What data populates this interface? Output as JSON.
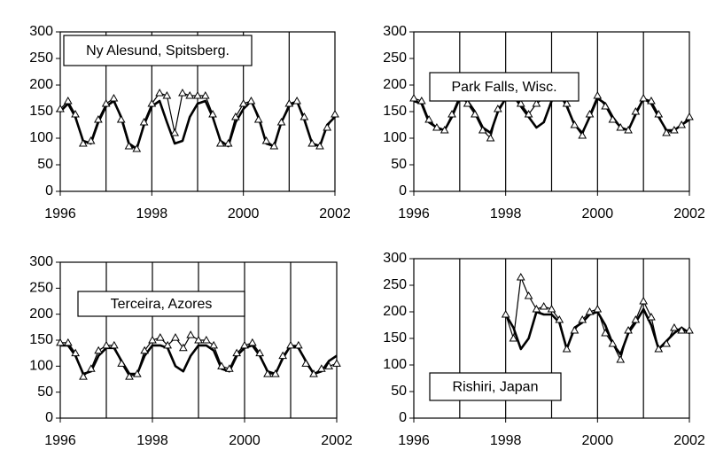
{
  "chart_data": [
    {
      "type": "line",
      "annotation": "Ny Alesund, Spitsberg.",
      "x": [
        1996,
        1996.17,
        1996.33,
        1996.5,
        1996.67,
        1996.83,
        1997,
        1997.17,
        1997.33,
        1997.5,
        1997.67,
        1997.83,
        1998,
        1998.17,
        1998.33,
        1998.5,
        1998.67,
        1998.83,
        1999,
        1999.17,
        1999.33,
        1999.5,
        1999.67,
        1999.83,
        2000,
        2000.17,
        2000.33,
        2000.5,
        2000.67,
        2000.83,
        2001,
        2001.17,
        2001.33,
        2001.5,
        2001.67,
        2001.83,
        2002
      ],
      "series": [
        {
          "color": "#000000",
          "values": [
            150,
            165,
            140,
            95,
            90,
            130,
            160,
            170,
            140,
            90,
            80,
            125,
            160,
            170,
            130,
            90,
            95,
            140,
            165,
            170,
            140,
            95,
            85,
            130,
            155,
            170,
            140,
            90,
            85,
            130,
            160,
            170,
            135,
            90,
            85,
            125,
            140
          ]
        },
        {
          "color": "#000000",
          "marker": "triangle",
          "values": [
            155,
            170,
            145,
            90,
            95,
            135,
            165,
            175,
            135,
            85,
            80,
            130,
            165,
            185,
            180,
            110,
            185,
            180,
            180,
            180,
            145,
            90,
            90,
            140,
            165,
            170,
            135,
            95,
            85,
            130,
            165,
            170,
            140,
            90,
            85,
            120,
            145
          ]
        }
      ],
      "xlim": [
        1996,
        2002
      ],
      "xticks": [
        1996,
        1998,
        2000,
        2002
      ],
      "x_gridlines": [
        1997,
        1998,
        1999,
        2000,
        2001
      ],
      "ylim": [
        0,
        300
      ],
      "yticks": [
        0,
        50,
        100,
        150,
        200,
        250,
        300
      ]
    },
    {
      "type": "line",
      "annotation": "Park Falls, Wisc.",
      "x": [
        1996,
        1996.17,
        1996.33,
        1996.5,
        1996.67,
        1996.83,
        1997,
        1997.17,
        1997.33,
        1997.5,
        1997.67,
        1997.83,
        1998,
        1998.17,
        1998.33,
        1998.5,
        1998.67,
        1998.83,
        1999,
        1999.17,
        1999.33,
        1999.5,
        1999.67,
        1999.83,
        2000,
        2000.17,
        2000.33,
        2000.5,
        2000.67,
        2000.83,
        2001,
        2001.17,
        2001.33,
        2001.5,
        2001.67,
        2001.83,
        2002
      ],
      "series": [
        {
          "color": "#000000",
          "values": [
            170,
            165,
            130,
            120,
            115,
            140,
            175,
            170,
            150,
            120,
            110,
            150,
            175,
            180,
            160,
            140,
            120,
            130,
            170,
            185,
            160,
            125,
            110,
            140,
            175,
            165,
            140,
            120,
            115,
            145,
            175,
            165,
            140,
            115,
            115,
            125,
            135
          ]
        },
        {
          "color": "#000000",
          "marker": "triangle",
          "values": [
            175,
            170,
            135,
            120,
            115,
            145,
            180,
            165,
            145,
            115,
            100,
            155,
            175,
            185,
            165,
            145,
            165,
            175,
            185,
            190,
            165,
            125,
            105,
            145,
            180,
            160,
            135,
            120,
            115,
            150,
            175,
            170,
            145,
            110,
            115,
            125,
            140
          ]
        }
      ],
      "xlim": [
        1996,
        2002
      ],
      "xticks": [
        1996,
        1998,
        2000,
        2002
      ],
      "x_gridlines": [
        1997,
        1998,
        1999,
        2000,
        2001
      ],
      "ylim": [
        0,
        300
      ],
      "yticks": [
        0,
        50,
        100,
        150,
        200,
        250,
        300
      ]
    },
    {
      "type": "line",
      "annotation": "Terceira, Azores",
      "x": [
        1996,
        1996.17,
        1996.33,
        1996.5,
        1996.67,
        1996.83,
        1997,
        1997.17,
        1997.33,
        1997.5,
        1997.67,
        1997.83,
        1998,
        1998.17,
        1998.33,
        1998.5,
        1998.67,
        1998.83,
        1999,
        1999.17,
        1999.33,
        1999.5,
        1999.67,
        1999.83,
        2000,
        2000.17,
        2000.33,
        2000.5,
        2000.67,
        2000.83,
        2001,
        2001.17,
        2001.33,
        2001.5,
        2001.67,
        2001.83,
        2002
      ],
      "series": [
        {
          "color": "#000000",
          "values": [
            140,
            140,
            120,
            85,
            90,
            120,
            135,
            135,
            110,
            85,
            85,
            120,
            140,
            140,
            135,
            100,
            90,
            120,
            140,
            140,
            130,
            95,
            90,
            120,
            135,
            140,
            120,
            90,
            85,
            115,
            140,
            135,
            110,
            85,
            90,
            110,
            120
          ]
        },
        {
          "color": "#000000",
          "marker": "triangle",
          "values": [
            145,
            145,
            125,
            80,
            95,
            130,
            140,
            140,
            105,
            80,
            85,
            130,
            150,
            155,
            140,
            155,
            135,
            160,
            150,
            150,
            140,
            100,
            95,
            125,
            140,
            145,
            125,
            85,
            85,
            120,
            140,
            140,
            105,
            85,
            95,
            100,
            105
          ]
        }
      ],
      "xlim": [
        1996,
        2002
      ],
      "xticks": [
        1996,
        1998,
        2000,
        2002
      ],
      "x_gridlines": [
        1997,
        1998,
        1999,
        2000,
        2001
      ],
      "ylim": [
        0,
        300
      ],
      "yticks": [
        0,
        50,
        100,
        150,
        200,
        250,
        300
      ]
    },
    {
      "type": "line",
      "annotation": "Rishiri, Japan",
      "x": [
        1996,
        1996.17,
        1996.33,
        1996.5,
        1996.67,
        1996.83,
        1997,
        1997.17,
        1997.33,
        1997.5,
        1997.67,
        1997.83,
        1998,
        1998.17,
        1998.33,
        1998.5,
        1998.67,
        1998.83,
        1999,
        1999.17,
        1999.33,
        1999.5,
        1999.67,
        1999.83,
        2000,
        2000.17,
        2000.33,
        2000.5,
        2000.67,
        2000.83,
        2001,
        2001.17,
        2001.33,
        2001.5,
        2001.67,
        2001.83,
        2002
      ],
      "series": [
        {
          "color": "#000000",
          "values": [
            null,
            null,
            null,
            null,
            null,
            null,
            null,
            null,
            null,
            null,
            null,
            null,
            195,
            170,
            130,
            150,
            200,
            195,
            195,
            180,
            130,
            170,
            180,
            195,
            200,
            175,
            140,
            120,
            160,
            180,
            205,
            175,
            130,
            145,
            160,
            170,
            160
          ]
        },
        {
          "color": "#000000",
          "marker": "triangle",
          "values": [
            null,
            null,
            null,
            null,
            null,
            null,
            null,
            null,
            null,
            null,
            null,
            null,
            195,
            150,
            265,
            230,
            205,
            210,
            205,
            185,
            130,
            165,
            185,
            200,
            205,
            160,
            140,
            110,
            165,
            185,
            220,
            190,
            130,
            140,
            170,
            165,
            165
          ]
        }
      ],
      "xlim": [
        1996,
        2002
      ],
      "xticks": [
        1996,
        1998,
        2000,
        2002
      ],
      "x_gridlines": [
        1997,
        1998,
        1999,
        2000,
        2001
      ],
      "ylim": [
        0,
        300
      ],
      "yticks": [
        0,
        50,
        100,
        150,
        200,
        250,
        300
      ]
    }
  ]
}
